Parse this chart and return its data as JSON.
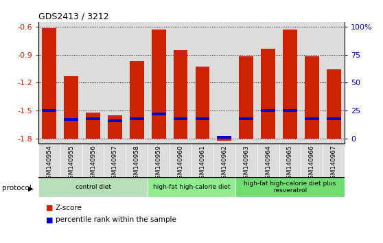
{
  "title": "GDS2413 / 3212",
  "samples": [
    "GSM140954",
    "GSM140955",
    "GSM140956",
    "GSM140957",
    "GSM140958",
    "GSM140959",
    "GSM140960",
    "GSM140961",
    "GSM140962",
    "GSM140963",
    "GSM140964",
    "GSM140965",
    "GSM140966",
    "GSM140967"
  ],
  "zscore": [
    -0.62,
    -1.13,
    -1.52,
    -1.55,
    -0.97,
    -0.63,
    -0.85,
    -1.03,
    -1.82,
    -0.92,
    -0.84,
    -0.63,
    -0.92,
    -1.06
  ],
  "pct_values": [
    25,
    17,
    18,
    16,
    18,
    22,
    18,
    18,
    1,
    18,
    25,
    25,
    18,
    18
  ],
  "bar_bottom": -1.8,
  "ylim": [
    -1.85,
    -0.55
  ],
  "yticks": [
    -1.8,
    -1.5,
    -1.2,
    -0.9,
    -0.6
  ],
  "right_ytick_labels": [
    "0",
    "25",
    "50",
    "75",
    "100%"
  ],
  "groups": [
    {
      "label": "control diet",
      "start": 0,
      "end": 5,
      "color": "#b8e0b8"
    },
    {
      "label": "high-fat high-calorie diet",
      "start": 5,
      "end": 9,
      "color": "#90ee90"
    },
    {
      "label": "high-fat high-calorie diet plus\nresveratrol",
      "start": 9,
      "end": 14,
      "color": "#70dd70"
    }
  ],
  "bar_color": "#cc2200",
  "pct_color": "#0000cc",
  "bg_color": "#dddddd",
  "legend_red": "Z-score",
  "legend_blue": "percentile rank within the sample",
  "left_tick_color": "#cc2200",
  "right_tick_color": "#0000bb"
}
